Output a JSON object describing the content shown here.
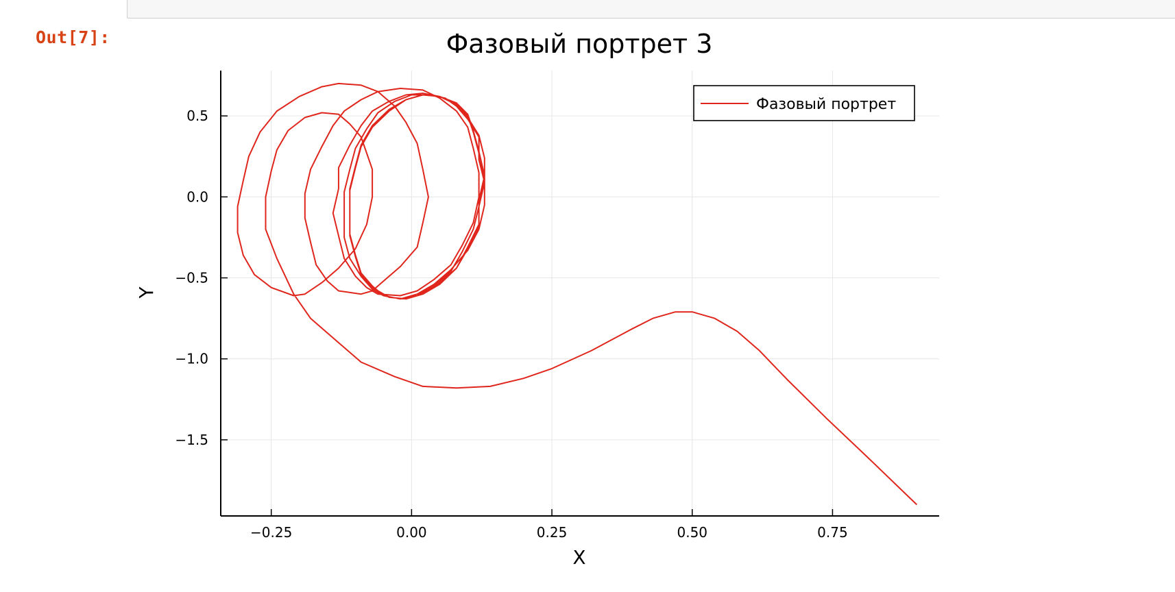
{
  "notebook": {
    "out_prompt": "Out[7]:"
  },
  "chart_data": {
    "type": "line",
    "title": "Фазовый портрет 3",
    "xlabel": "X",
    "ylabel": "Y",
    "xlim": [
      -0.34,
      0.94
    ],
    "ylim": [
      -1.97,
      0.78
    ],
    "xticks": [
      -0.25,
      0.0,
      0.25,
      0.5,
      0.75
    ],
    "xtick_labels": [
      "−0.25",
      "0.00",
      "0.25",
      "0.50",
      "0.75"
    ],
    "yticks": [
      0.5,
      0.0,
      -0.5,
      -1.0,
      -1.5
    ],
    "ytick_labels": [
      "0.5",
      "0.0",
      "−0.5",
      "−1.0",
      "−1.5"
    ],
    "grid": true,
    "legend_position": "top-right",
    "color": "#e0261c",
    "series": [
      {
        "name": "Фазовый портрет",
        "points": [
          [
            0.9,
            -1.9
          ],
          [
            0.81,
            -1.6
          ],
          [
            0.74,
            -1.37
          ],
          [
            0.67,
            -1.13
          ],
          [
            0.62,
            -0.95
          ],
          [
            0.58,
            -0.83
          ],
          [
            0.54,
            -0.75
          ],
          [
            0.5,
            -0.71
          ],
          [
            0.47,
            -0.71
          ],
          [
            0.43,
            -0.75
          ],
          [
            0.39,
            -0.82
          ],
          [
            0.32,
            -0.95
          ],
          [
            0.25,
            -1.06
          ],
          [
            0.2,
            -1.12
          ],
          [
            0.14,
            -1.17
          ],
          [
            0.08,
            -1.18
          ],
          [
            0.02,
            -1.17
          ],
          [
            -0.03,
            -1.11
          ],
          [
            -0.09,
            -1.02
          ],
          [
            -0.13,
            -0.9
          ],
          [
            -0.18,
            -0.75
          ],
          [
            -0.21,
            -0.6
          ],
          [
            -0.24,
            -0.38
          ],
          [
            -0.26,
            -0.2
          ],
          [
            -0.26,
            0.0
          ],
          [
            -0.25,
            0.16
          ],
          [
            -0.24,
            0.29
          ],
          [
            -0.22,
            0.41
          ],
          [
            -0.19,
            0.49
          ],
          [
            -0.16,
            0.52
          ],
          [
            -0.13,
            0.51
          ],
          [
            -0.11,
            0.45
          ],
          [
            -0.09,
            0.37
          ],
          [
            -0.08,
            0.27
          ],
          [
            -0.07,
            0.17
          ],
          [
            -0.07,
            0.0
          ],
          [
            -0.08,
            -0.17
          ],
          [
            -0.1,
            -0.32
          ],
          [
            -0.13,
            -0.44
          ],
          [
            -0.16,
            -0.53
          ],
          [
            -0.19,
            -0.6
          ],
          [
            -0.21,
            -0.61
          ],
          [
            -0.25,
            -0.56
          ],
          [
            -0.28,
            -0.48
          ],
          [
            -0.3,
            -0.36
          ],
          [
            -0.31,
            -0.22
          ],
          [
            -0.31,
            -0.06
          ],
          [
            -0.3,
            0.1
          ],
          [
            -0.29,
            0.25
          ],
          [
            -0.27,
            0.4
          ],
          [
            -0.24,
            0.53
          ],
          [
            -0.2,
            0.62
          ],
          [
            -0.16,
            0.68
          ],
          [
            -0.13,
            0.7
          ],
          [
            -0.09,
            0.69
          ],
          [
            -0.06,
            0.65
          ],
          [
            -0.03,
            0.56
          ],
          [
            -0.01,
            0.46
          ],
          [
            0.01,
            0.33
          ],
          [
            0.02,
            0.17
          ],
          [
            0.03,
            0.0
          ],
          [
            0.02,
            -0.16
          ],
          [
            0.01,
            -0.31
          ],
          [
            -0.02,
            -0.43
          ],
          [
            -0.05,
            -0.52
          ],
          [
            -0.07,
            -0.58
          ],
          [
            -0.09,
            -0.6
          ],
          [
            -0.13,
            -0.58
          ],
          [
            -0.15,
            -0.52
          ],
          [
            -0.17,
            -0.42
          ],
          [
            -0.18,
            -0.28
          ],
          [
            -0.19,
            -0.13
          ],
          [
            -0.19,
            0.02
          ],
          [
            -0.18,
            0.17
          ],
          [
            -0.16,
            0.31
          ],
          [
            -0.14,
            0.44
          ],
          [
            -0.12,
            0.53
          ],
          [
            -0.09,
            0.6
          ],
          [
            -0.06,
            0.65
          ],
          [
            -0.02,
            0.67
          ],
          [
            0.02,
            0.66
          ],
          [
            0.05,
            0.61
          ],
          [
            0.08,
            0.53
          ],
          [
            0.1,
            0.43
          ],
          [
            0.11,
            0.3
          ],
          [
            0.12,
            0.15
          ],
          [
            0.12,
            0.0
          ],
          [
            0.11,
            -0.16
          ],
          [
            0.09,
            -0.3
          ],
          [
            0.07,
            -0.42
          ],
          [
            0.04,
            -0.51
          ],
          [
            0.01,
            -0.58
          ],
          [
            -0.02,
            -0.61
          ],
          [
            -0.06,
            -0.6
          ],
          [
            -0.08,
            -0.56
          ],
          [
            -0.1,
            -0.49
          ],
          [
            -0.12,
            -0.38
          ],
          [
            -0.13,
            -0.24
          ],
          [
            -0.14,
            -0.1
          ],
          [
            -0.13,
            0.05
          ],
          [
            -0.13,
            0.18
          ],
          [
            -0.11,
            0.32
          ],
          [
            -0.09,
            0.44
          ],
          [
            -0.07,
            0.53
          ],
          [
            -0.04,
            0.59
          ],
          [
            -0.01,
            0.63
          ],
          [
            0.02,
            0.64
          ],
          [
            0.05,
            0.62
          ],
          [
            0.08,
            0.57
          ],
          [
            0.1,
            0.49
          ],
          [
            0.12,
            0.38
          ],
          [
            0.13,
            0.24
          ],
          [
            0.13,
            0.1
          ],
          [
            0.13,
            -0.05
          ],
          [
            0.12,
            -0.2
          ],
          [
            0.1,
            -0.33
          ],
          [
            0.07,
            -0.45
          ],
          [
            0.04,
            -0.54
          ],
          [
            0.01,
            -0.6
          ],
          [
            -0.02,
            -0.63
          ],
          [
            -0.05,
            -0.61
          ],
          [
            -0.07,
            -0.57
          ],
          [
            -0.09,
            -0.49
          ],
          [
            -0.11,
            -0.38
          ],
          [
            -0.12,
            -0.25
          ],
          [
            -0.12,
            -0.11
          ],
          [
            -0.12,
            0.03
          ],
          [
            -0.11,
            0.17
          ],
          [
            -0.1,
            0.3
          ],
          [
            -0.08,
            0.42
          ],
          [
            -0.06,
            0.52
          ],
          [
            -0.03,
            0.59
          ],
          [
            0.0,
            0.63
          ],
          [
            0.03,
            0.63
          ],
          [
            0.06,
            0.61
          ],
          [
            0.08,
            0.56
          ],
          [
            0.1,
            0.48
          ],
          [
            0.12,
            0.37
          ],
          [
            0.12,
            0.23
          ],
          [
            0.13,
            0.09
          ],
          [
            0.12,
            -0.06
          ],
          [
            0.11,
            -0.2
          ],
          [
            0.09,
            -0.34
          ],
          [
            0.07,
            -0.46
          ],
          [
            0.04,
            -0.55
          ],
          [
            0.01,
            -0.61
          ],
          [
            -0.02,
            -0.63
          ],
          [
            -0.05,
            -0.61
          ],
          [
            -0.07,
            -0.55
          ],
          [
            -0.09,
            -0.47
          ],
          [
            -0.1,
            -0.36
          ],
          [
            -0.11,
            -0.23
          ],
          [
            -0.11,
            -0.09
          ],
          [
            -0.11,
            0.05
          ],
          [
            -0.1,
            0.19
          ],
          [
            -0.09,
            0.32
          ],
          [
            -0.07,
            0.44
          ],
          [
            -0.04,
            0.54
          ],
          [
            -0.01,
            0.6
          ],
          [
            0.02,
            0.63
          ],
          [
            0.05,
            0.62
          ],
          [
            0.08,
            0.58
          ],
          [
            0.1,
            0.51
          ],
          [
            0.11,
            0.41
          ],
          [
            0.12,
            0.28
          ],
          [
            0.13,
            0.13
          ],
          [
            0.12,
            -0.02
          ],
          [
            0.12,
            -0.17
          ],
          [
            0.1,
            -0.31
          ],
          [
            0.08,
            -0.44
          ],
          [
            0.05,
            -0.53
          ],
          [
            0.02,
            -0.6
          ],
          [
            -0.01,
            -0.63
          ],
          [
            -0.04,
            -0.62
          ],
          [
            -0.07,
            -0.56
          ],
          [
            -0.09,
            -0.48
          ],
          [
            -0.1,
            -0.37
          ],
          [
            -0.11,
            -0.24
          ],
          [
            -0.11,
            -0.1
          ],
          [
            -0.11,
            0.04
          ],
          [
            -0.1,
            0.18
          ],
          [
            -0.09,
            0.31
          ],
          [
            -0.07,
            0.43
          ],
          [
            -0.04,
            0.53
          ],
          [
            -0.01,
            0.6
          ],
          [
            0.02,
            0.63
          ],
          [
            0.05,
            0.62
          ],
          [
            0.08,
            0.57
          ],
          [
            0.1,
            0.5
          ],
          [
            0.11,
            0.4
          ],
          [
            0.12,
            0.27
          ],
          [
            0.13,
            0.12
          ],
          [
            0.12,
            -0.03
          ],
          [
            0.12,
            -0.18
          ],
          [
            0.1,
            -0.32
          ],
          [
            0.08,
            -0.44
          ],
          [
            0.05,
            -0.54
          ],
          [
            0.02,
            -0.6
          ],
          [
            -0.01,
            -0.63
          ]
        ]
      }
    ]
  }
}
